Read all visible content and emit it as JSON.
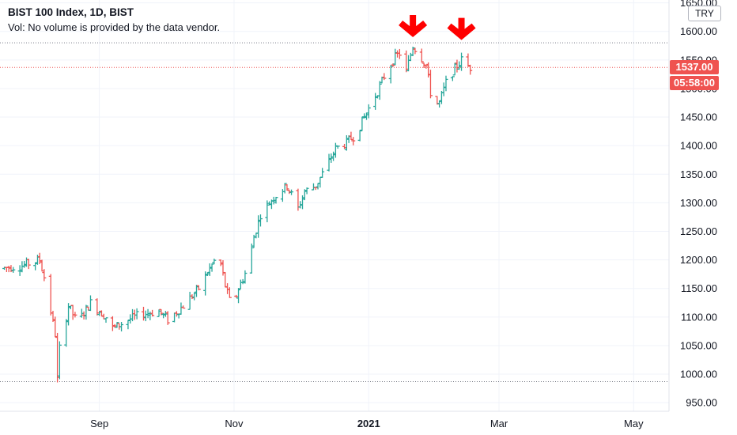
{
  "legend": {
    "title": "BIST 100 Index, 1D, BIST",
    "volume_note": "Vol: No volume is provided by the data vendor."
  },
  "currency": "TRY",
  "last_price_label": "1537.00",
  "countdown_label": "05:58:00",
  "colors": {
    "up": "#26a69a",
    "down": "#ef5350",
    "arrow": "#ff0000",
    "grid": "#f0f3fa",
    "axis_text": "#131722"
  },
  "chart_data": {
    "type": "ohlc",
    "title": "BIST 100 Index, 1D, BIST",
    "ylim": [
      935,
      1655
    ],
    "xlim": [
      "2020-07-18",
      "2021-05-17"
    ],
    "y_ticks": [
      "950.00",
      "1000.00",
      "1050.00",
      "1100.00",
      "1150.00",
      "1200.00",
      "1250.00",
      "1300.00",
      "1350.00",
      "1400.00",
      "1450.00",
      "1500.00",
      "1550.00",
      "1600.00",
      "1650.00"
    ],
    "x_ticks": [
      {
        "label": "Sep",
        "date": "2020-09-01"
      },
      {
        "label": "Nov",
        "date": "2020-11-01"
      },
      {
        "label": "2021",
        "date": "2021-01-01"
      },
      {
        "label": "Mar",
        "date": "2021-03-01"
      },
      {
        "label": "May",
        "date": "2021-05-01"
      }
    ],
    "grid": true,
    "horizontal_lines": [
      {
        "value": 1580,
        "style": "dotted"
      },
      {
        "value": 1537,
        "style": "dotted"
      },
      {
        "value": 987,
        "style": "dotted"
      }
    ],
    "last_price": 1537.0,
    "annotations": [
      {
        "type": "arrow-down",
        "date": "2021-01-21",
        "value": 1612
      },
      {
        "type": "arrow-down",
        "date": "2021-02-12",
        "value": 1607
      }
    ],
    "anchors": [
      [
        "2020-07-18",
        1185
      ],
      [
        "2020-07-28",
        1190
      ],
      [
        "2020-08-05",
        1200
      ],
      [
        "2020-08-07",
        1170
      ],
      [
        "2020-08-10",
        1110
      ],
      [
        "2020-08-12",
        1070
      ],
      [
        "2020-08-13",
        990
      ],
      [
        "2020-08-14",
        1045
      ],
      [
        "2020-08-18",
        1120
      ],
      [
        "2020-08-22",
        1090
      ],
      [
        "2020-08-28",
        1125
      ],
      [
        "2020-09-04",
        1100
      ],
      [
        "2020-09-07",
        1080
      ],
      [
        "2020-09-14",
        1095
      ],
      [
        "2020-09-20",
        1105
      ],
      [
        "2020-09-28",
        1110
      ],
      [
        "2020-10-02",
        1095
      ],
      [
        "2020-10-09",
        1120
      ],
      [
        "2020-10-16",
        1150
      ],
      [
        "2020-10-21",
        1185
      ],
      [
        "2020-10-25",
        1210
      ],
      [
        "2020-10-28",
        1155
      ],
      [
        "2020-10-31",
        1115
      ],
      [
        "2020-11-03",
        1150
      ],
      [
        "2020-11-07",
        1185
      ],
      [
        "2020-11-10",
        1240
      ],
      [
        "2020-11-13",
        1280
      ],
      [
        "2020-11-19",
        1310
      ],
      [
        "2020-11-25",
        1330
      ],
      [
        "2020-11-30",
        1290
      ],
      [
        "2020-12-03",
        1320
      ],
      [
        "2020-12-08",
        1330
      ],
      [
        "2020-12-13",
        1365
      ],
      [
        "2020-12-17",
        1395
      ],
      [
        "2020-12-22",
        1405
      ],
      [
        "2020-12-26",
        1420
      ],
      [
        "2020-12-30",
        1450
      ],
      [
        "2021-01-05",
        1495
      ],
      [
        "2021-01-09",
        1530
      ],
      [
        "2021-01-13",
        1555
      ],
      [
        "2021-01-16",
        1565
      ],
      [
        "2021-01-18",
        1530
      ],
      [
        "2021-01-21",
        1575
      ],
      [
        "2021-01-24",
        1560
      ],
      [
        "2021-01-27",
        1540
      ],
      [
        "2021-01-30",
        1470
      ],
      [
        "2021-02-02",
        1475
      ],
      [
        "2021-02-05",
        1510
      ],
      [
        "2021-02-09",
        1535
      ],
      [
        "2021-02-12",
        1550
      ],
      [
        "2021-02-14",
        1540
      ],
      [
        "2021-02-16",
        1537
      ]
    ]
  }
}
